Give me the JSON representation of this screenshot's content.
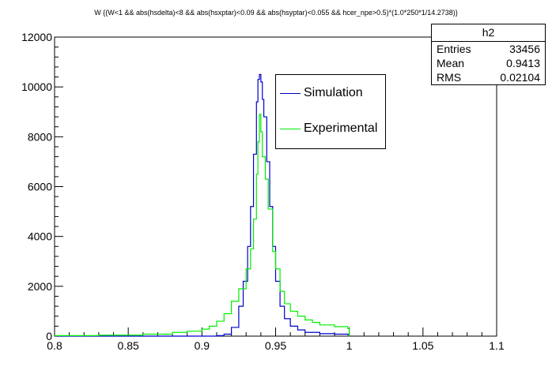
{
  "title": "W {(W<1 && abs(hsdelta)<8 && abs(hsxptar)<0.09 && abs(hsyptar)<0.055 && hcer_npe>0.5)*(1.0*250*1/14.2738)}",
  "stats": {
    "name": "h2",
    "rows": [
      {
        "label": "Entries",
        "value": "33456"
      },
      {
        "label": "Mean",
        "value": "0.9413"
      },
      {
        "label": "RMS",
        "value": "0.02104"
      }
    ]
  },
  "legend": [
    {
      "label": "Simulation",
      "color": "#0000cc"
    },
    {
      "label": "Experimental",
      "color": "#00ee00"
    }
  ],
  "chart_data": {
    "type": "line",
    "title": "W {(W<1 && abs(hsdelta)<8 && abs(hsxptar)<0.09 && abs(hsyptar)<0.055 && hcer_npe>0.5)*(1.0*250*1/14.2738)}",
    "xlabel": "",
    "ylabel": "",
    "xlim": [
      0.8,
      1.1
    ],
    "ylim": [
      0,
      12000
    ],
    "xticks": [
      "0.8",
      "0.85",
      "0.9",
      "0.95",
      "1",
      "1.05",
      "1.1"
    ],
    "yticks": [
      "0",
      "2000",
      "4000",
      "6000",
      "8000",
      "10000",
      "12000"
    ],
    "grid": false,
    "legend_position": "top-center-right",
    "series": [
      {
        "name": "Simulation",
        "color": "#0000cc",
        "x": [
          0.8,
          0.85,
          0.9,
          0.91,
          0.915,
          0.92,
          0.925,
          0.928,
          0.931,
          0.933,
          0.935,
          0.937,
          0.938,
          0.939,
          0.94,
          0.941,
          0.942,
          0.944,
          0.946,
          0.948,
          0.95,
          0.953,
          0.956,
          0.96,
          0.965,
          0.97,
          0.98,
          0.99,
          0.999,
          1.0
        ],
        "y": [
          0,
          0,
          0,
          20,
          80,
          350,
          1200,
          2200,
          3600,
          5200,
          7300,
          9400,
          10300,
          10500,
          10200,
          9500,
          8800,
          7000,
          5200,
          3600,
          2200,
          1200,
          700,
          400,
          250,
          150,
          100,
          80,
          60,
          0
        ]
      },
      {
        "name": "Experimental",
        "color": "#00ee00",
        "x": [
          0.8,
          0.83,
          0.86,
          0.88,
          0.89,
          0.9,
          0.905,
          0.91,
          0.915,
          0.92,
          0.925,
          0.93,
          0.933,
          0.935,
          0.937,
          0.938,
          0.939,
          0.94,
          0.941,
          0.943,
          0.945,
          0.948,
          0.95,
          0.953,
          0.956,
          0.96,
          0.965,
          0.97,
          0.975,
          0.98,
          0.99,
          0.999,
          1.0
        ],
        "y": [
          20,
          40,
          80,
          150,
          200,
          280,
          400,
          600,
          900,
          1400,
          1900,
          2700,
          3500,
          4700,
          6500,
          7800,
          8900,
          8200,
          7200,
          6300,
          5100,
          3400,
          2700,
          1800,
          1300,
          1000,
          800,
          650,
          550,
          450,
          380,
          300,
          0
        ]
      }
    ]
  }
}
